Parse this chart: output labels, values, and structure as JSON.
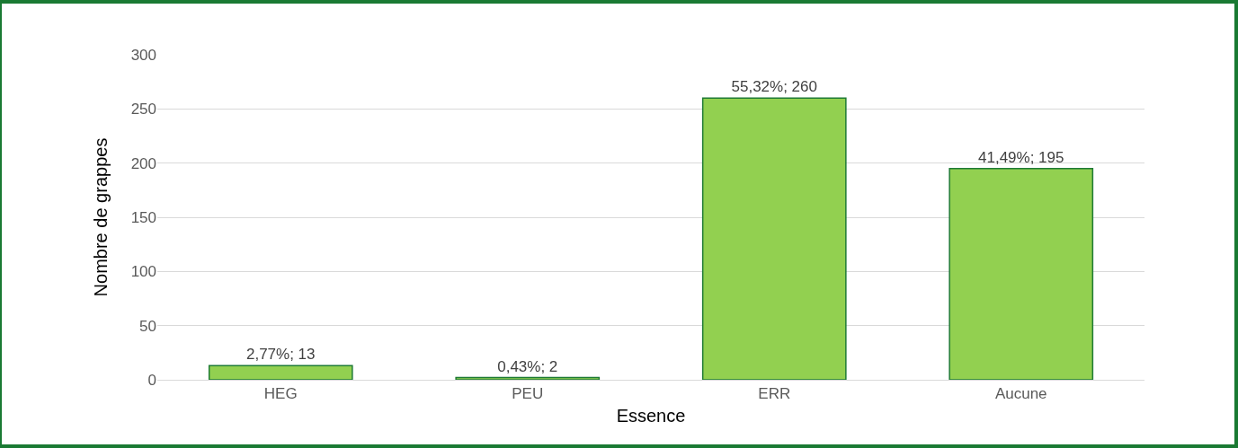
{
  "chart_data": {
    "type": "bar",
    "xlabel": "Essence",
    "ylabel": "Nombre de grappes",
    "categories": [
      "HEG",
      "PEU",
      "ERR",
      "Aucune"
    ],
    "values": [
      13,
      2,
      260,
      195
    ],
    "value_labels": [
      "2,77%; 13",
      "0,43%; 2",
      "55,32%; 260",
      "41,49%; 195"
    ],
    "color": "#92d050",
    "ylim": [
      0,
      300
    ],
    "yticks": [
      0,
      50,
      100,
      150,
      200,
      250,
      300
    ],
    "grid": "y"
  }
}
